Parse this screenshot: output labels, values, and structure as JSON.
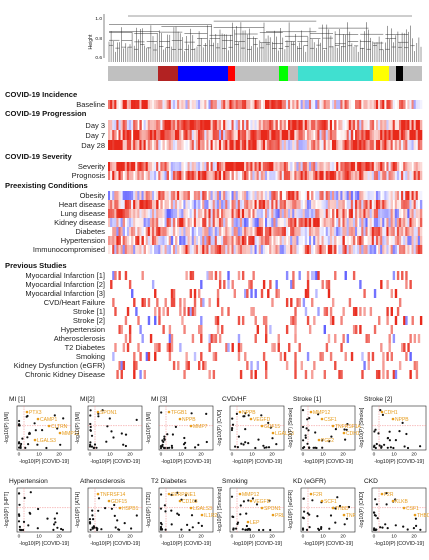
{
  "figure": {
    "dendrogram": {
      "ylabel": "Height",
      "yticks": [
        "0.6",
        "0.8",
        "1.0"
      ],
      "module_colors": [
        "#c0c0c0",
        "#b22222",
        "#0000ff",
        "#ff0000",
        "#c0c0c0",
        "#00ff00",
        "#c0c0c0",
        "#40e0d0",
        "#ffff00",
        "#c0c0c0",
        "#000000",
        "#c0c0c0"
      ]
    },
    "heatmap": {
      "colors": {
        "low": "#3a3aff",
        "mid": "#ffffff",
        "high": "#e8281a"
      },
      "sections": [
        {
          "title": "COVID-19 Incidence",
          "rows": [
            "Baseline"
          ]
        },
        {
          "title": "COVID-19 Progression",
          "rows": [
            "Day 3",
            "Day 7",
            "Day 28"
          ]
        },
        {
          "title": "COVID-19 Severity",
          "rows": [
            "Severity",
            "Prognosis"
          ]
        },
        {
          "title": "Preexisting Conditions",
          "rows": [
            "Obesity",
            "Heart disease",
            "Lung disease",
            "Kidney disease",
            "Diabetes",
            "Hypertension",
            "Immunocompromised"
          ]
        },
        {
          "title": "Previous Studies",
          "rows": [
            "Myocardial Infarction [1]",
            "Myocardial Infarction [2]",
            "Myocardial Infarction [3]",
            "CVD/Heart Failure",
            "Stroke [1]",
            "Stroke [2]",
            "Hypertension",
            "Atherosclerosis",
            "T2 Diabetes",
            "Smoking",
            "Kidney Dysfunction (eGFR)",
            "Chronic Kidney Disease"
          ]
        }
      ]
    },
    "scatter_xlabel": "-log10(P) [COVID-19]"
  },
  "chart_data": [
    {
      "type": "scatter",
      "title": "MI [1]",
      "xlabel": "-log10(P) [COVID-19]",
      "ylabel": "-log10(P) [MI]",
      "genes": [
        "PTX3",
        "CAMP1",
        "CLTRN",
        "MMP12",
        "LGALS3"
      ]
    },
    {
      "type": "scatter",
      "title": "MI[2]",
      "xlabel": "-log10(P) [COVID-19]",
      "ylabel": "-log10(P) [MI]",
      "genes": [
        "SPON1"
      ]
    },
    {
      "type": "scatter",
      "title": "MI [3]",
      "xlabel": "-log10(P) [COVID-19]",
      "ylabel": "-log10(P) [MI]",
      "genes": [
        "TFGB1",
        "NPPB",
        "MMP7"
      ]
    },
    {
      "type": "scatter",
      "title": "CVD/HF",
      "xlabel": "-log10(P) [COVID-19]",
      "ylabel": "-log10(P) [CVD]",
      "genes": [
        "NPPB",
        "VEGFD",
        "GDF15",
        "LGALS3"
      ]
    },
    {
      "type": "scatter",
      "title": "Stroke [1]",
      "xlabel": "-log10(P) [COVID-19]",
      "ylabel": "-log10(P) [Stroke]",
      "genes": [
        "MMP12",
        "CSF1",
        "TNFRSF1A",
        "CDH1",
        "PGF2"
      ]
    },
    {
      "type": "scatter",
      "title": "Stroke [2]",
      "xlabel": "-log10(P) [COVID-19]",
      "ylabel": "-log10(P) [Stroke]",
      "genes": [
        "CDH1",
        "NPPB"
      ]
    },
    {
      "type": "scatter",
      "title": "Hypertension",
      "xlabel": "-log10(P) [COVID-19]",
      "ylabel": "-log10(P) [HPT]",
      "genes": []
    },
    {
      "type": "scatter",
      "title": "Atherosclerosis",
      "xlabel": "-log10(P) [COVID-19]",
      "ylabel": "-log10(P) [ATH]",
      "genes": [
        "TNFRSF14",
        "GDF15",
        "HSPB1"
      ]
    },
    {
      "type": "scatter",
      "title": "T2 Diabetes",
      "xlabel": "-log10(P) [COVID-19]",
      "ylabel": "-log10(P) [T2D]",
      "genes": [
        "SERPINE1",
        "CD163",
        "LGALS3",
        "IL1R2"
      ]
    },
    {
      "type": "scatter",
      "title": "Smoking",
      "xlabel": "-log10(P) [COVID-19]",
      "ylabel": "-log10(P) [Smoking]",
      "genes": [
        "MMP12",
        "VEGFD",
        "SPON1",
        "PRL",
        "LEP"
      ]
    },
    {
      "type": "scatter",
      "title": "KD (eGFR)",
      "xlabel": "-log10(P) [COVID-19]",
      "ylabel": "-log10(P) [eGFR]",
      "genes": [
        "F2R",
        "SCF1",
        "THBD",
        "TNF"
      ]
    },
    {
      "type": "scatter",
      "title": "CKD",
      "xlabel": "-log10(P) [COVID-19]",
      "ylabel": "-log10(P) [CKD]",
      "genes": [
        "F2R",
        "KLKB",
        "CSF1",
        "THBD"
      ]
    }
  ],
  "scatter_axes": {
    "x_ticks": [
      "0",
      "5",
      "10",
      "15",
      "20",
      "25"
    ],
    "y_ticks": [
      "0",
      "2",
      "4",
      "6",
      "8",
      "10"
    ]
  }
}
